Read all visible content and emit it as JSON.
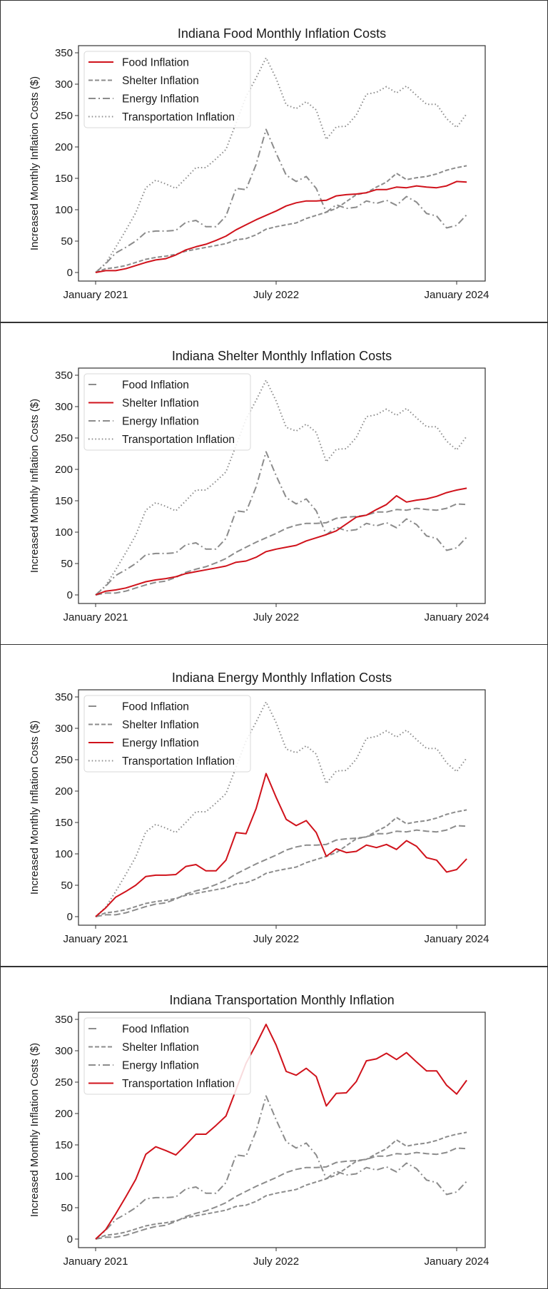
{
  "chart_data": [
    {
      "type": "line",
      "title": "Indiana Food Monthly Inflation Costs",
      "highlight": "Food Inflation",
      "xlabel": "",
      "ylabel": "Increased Monthly Inflation Costs ($)",
      "ylim": [
        -17,
        362
      ],
      "yticks": [
        0,
        50,
        100,
        150,
        200,
        250,
        300,
        350
      ],
      "xticks": [
        {
          "label": "January 2021",
          "month": 0
        },
        {
          "label": "July 2022",
          "month": 18
        },
        {
          "label": "January 2024",
          "month": 36
        }
      ],
      "legend_position": "top-left",
      "grid": false
    },
    {
      "type": "line",
      "title": "Indiana Shelter Monthly Inflation Costs",
      "highlight": "Shelter Inflation",
      "xlabel": "",
      "ylabel": "Increased Monthly Inflation Costs ($)",
      "ylim": [
        -17,
        362
      ],
      "yticks": [
        0,
        50,
        100,
        150,
        200,
        250,
        300,
        350
      ],
      "xticks": [
        {
          "label": "January 2021",
          "month": 0
        },
        {
          "label": "July 2022",
          "month": 18
        },
        {
          "label": "January 2024",
          "month": 36
        }
      ],
      "legend_position": "top-left",
      "grid": false
    },
    {
      "type": "line",
      "title": "Indiana Energy Monthly Inflation Costs",
      "highlight": "Energy Inflation",
      "xlabel": "",
      "ylabel": "Increased Monthly Inflation Costs ($)",
      "ylim": [
        -17,
        362
      ],
      "yticks": [
        0,
        50,
        100,
        150,
        200,
        250,
        300,
        350
      ],
      "xticks": [
        {
          "label": "January 2021",
          "month": 0
        },
        {
          "label": "July 2022",
          "month": 18
        },
        {
          "label": "January 2024",
          "month": 36
        }
      ],
      "legend_position": "top-left",
      "grid": false
    },
    {
      "type": "line",
      "title": "Indiana Transportation Monthly Inflation",
      "highlight": "Transportation Inflation",
      "xlabel": "",
      "ylabel": "Increased Monthly Inflation Costs ($)",
      "ylim": [
        -17,
        362
      ],
      "yticks": [
        0,
        50,
        100,
        150,
        200,
        250,
        300,
        350
      ],
      "xticks": [
        {
          "label": "January 2021",
          "month": 0
        },
        {
          "label": "July 2022",
          "month": 18
        },
        {
          "label": "January 2024",
          "month": 36
        }
      ],
      "legend_position": "top-left",
      "grid": false
    }
  ],
  "series": [
    {
      "name": "Food Inflation",
      "style": "longdash",
      "values": [
        0,
        3,
        3,
        6,
        11,
        16,
        20,
        22,
        28,
        36,
        41,
        45,
        51,
        58,
        68,
        76,
        84,
        91,
        98,
        106,
        111,
        114,
        114,
        115,
        122,
        124,
        125,
        127,
        132,
        132,
        136,
        135,
        138,
        136,
        135,
        138,
        145,
        144
      ]
    },
    {
      "name": "Shelter Inflation",
      "style": "dashed",
      "values": [
        0,
        6,
        8,
        11,
        16,
        21,
        24,
        26,
        29,
        34,
        37,
        40,
        43,
        46,
        52,
        54,
        60,
        69,
        73,
        76,
        79,
        86,
        91,
        96,
        102,
        113,
        124,
        127,
        136,
        144,
        158,
        148,
        151,
        153,
        157,
        163,
        167,
        170
      ]
    },
    {
      "name": "Energy Inflation",
      "style": "dashdot",
      "values": [
        0,
        14,
        31,
        40,
        50,
        64,
        66,
        66,
        67,
        80,
        83,
        73,
        73,
        90,
        134,
        132,
        172,
        228,
        190,
        155,
        145,
        153,
        134,
        96,
        108,
        102,
        104,
        114,
        110,
        115,
        107,
        121,
        112,
        94,
        90,
        71,
        75,
        92
      ]
    },
    {
      "name": "Transportation Inflation",
      "style": "dotted",
      "values": [
        0,
        15,
        40,
        67,
        95,
        135,
        147,
        141,
        134,
        150,
        167,
        167,
        181,
        196,
        238,
        280,
        310,
        342,
        309,
        267,
        261,
        272,
        259,
        212,
        232,
        233,
        251,
        284,
        287,
        296,
        286,
        297,
        282,
        268,
        268,
        245,
        231,
        253
      ]
    }
  ],
  "colors": {
    "highlight": "#d0121b",
    "other": "#8c8c8c",
    "text": "#1a1a1a",
    "axis": "#333333"
  }
}
